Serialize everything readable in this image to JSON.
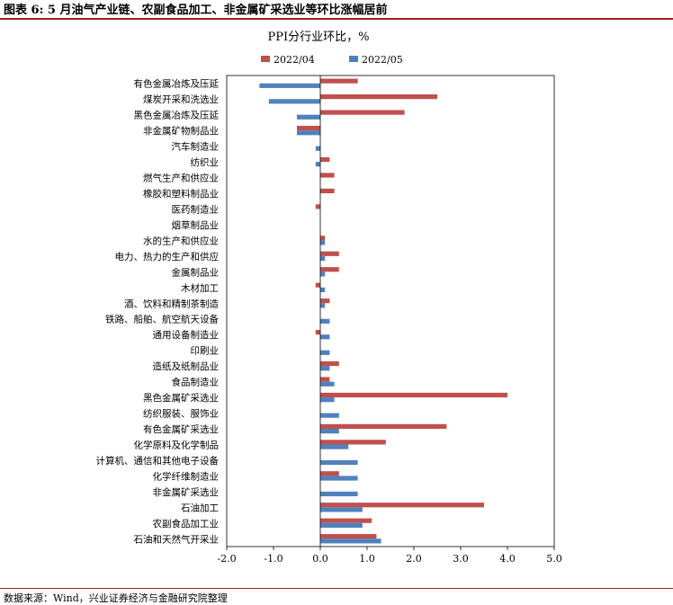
{
  "figure_title": "图表 6: 5 月油气产业链、农副食品加工、非金属矿采选业等环比涨幅居前",
  "source": "数据来源：Wind，兴业证券经济与金融研究院整理",
  "chart_data": {
    "type": "bar",
    "orientation": "horizontal",
    "title": "PPI分行业环比，%",
    "categories": [
      "有色金属冶炼及压延",
      "煤炭开采和洗选业",
      "黑色金属冶炼及压延",
      "非金属矿物制品业",
      "汽车制造业",
      "纺织业",
      "燃气生产和供应业",
      "橡胶和塑料制品业",
      "医药制造业",
      "烟草制品业",
      "水的生产和供应业",
      "电力、热力的生产和供应",
      "金属制品业",
      "木材加工",
      "酒、饮料和精制茶制造",
      "铁路、船舶、航空航天设备",
      "通用设备制造业",
      "印刷业",
      "造纸及纸制品业",
      "食品制造业",
      "黑色金属矿采选业",
      "纺织服装、服饰业",
      "有色金属矿采选业",
      "化学原料及化学制品",
      "计算机、通信和其他电子设备",
      "化学纤维制造业",
      "非金属矿采选业",
      "石油加工",
      "农副食品加工业",
      "石油和天然气开采业"
    ],
    "series": [
      {
        "name": "2022/04",
        "color": "#c0504d",
        "values": [
          0.8,
          2.5,
          1.8,
          -0.5,
          0,
          0.2,
          0.3,
          0.3,
          -0.1,
          0,
          0.1,
          0.4,
          0.4,
          -0.1,
          0.2,
          0,
          -0.1,
          0,
          0.4,
          0.2,
          4.0,
          0,
          2.7,
          1.4,
          0,
          0.4,
          0,
          3.5,
          1.1,
          1.2
        ]
      },
      {
        "name": "2022/05",
        "color": "#4f81bd",
        "values": [
          -1.3,
          -1.1,
          -0.5,
          -0.5,
          -0.1,
          -0.1,
          0,
          0,
          0,
          0,
          0.1,
          0.1,
          0.1,
          0.1,
          0.1,
          0.2,
          0.2,
          0.2,
          0.2,
          0.3,
          0.3,
          0.4,
          0.4,
          0.6,
          0.8,
          0.8,
          0.8,
          0.9,
          0.9,
          1.3
        ]
      }
    ],
    "xlim": [
      -2.0,
      5.0
    ],
    "xticks": [
      "-2.0",
      "-1.0",
      "0.0",
      "1.0",
      "2.0",
      "3.0",
      "4.0",
      "5.0"
    ],
    "grid": false,
    "legend_position": "top-center"
  }
}
